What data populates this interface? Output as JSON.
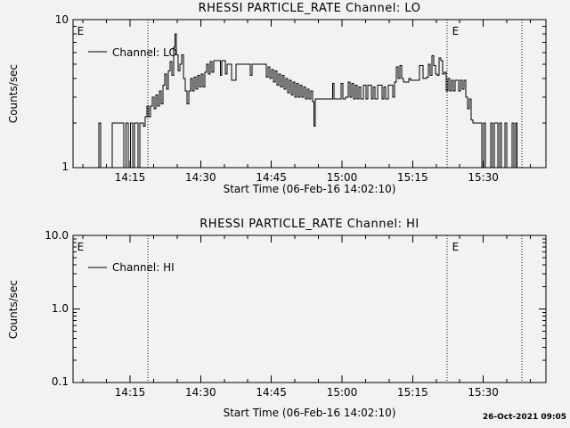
{
  "colors": {
    "background": "#f2f2f2",
    "foreground": "#000000"
  },
  "footer": {
    "timestamp": "26-Oct-2021 09:05"
  },
  "chart_data": [
    {
      "type": "line",
      "panel": "LO",
      "title": "RHESSI PARTICLE_RATE Channel: LO",
      "xlabel": "Start Time (06-Feb-16 14:02:10)",
      "ylabel": "Counts/sec",
      "yscale": "log",
      "ylim": [
        1,
        10
      ],
      "yticks": [
        {
          "v": 1,
          "label": "1"
        },
        {
          "v": 10,
          "label": "10"
        }
      ],
      "xlim_minutes_after_1400": [
        2.9,
        103.3
      ],
      "xticks_minutes": [
        {
          "t": 15,
          "label": "14:15"
        },
        {
          "t": 30,
          "label": "14:30"
        },
        {
          "t": 45,
          "label": "14:45"
        },
        {
          "t": 60,
          "label": "15:00"
        },
        {
          "t": 75,
          "label": "15:15"
        },
        {
          "t": 90,
          "label": "15:30"
        }
      ],
      "xminor_step_minutes": 5,
      "grid": false,
      "legend": {
        "label": "Channel: LO",
        "position": "upper-left"
      },
      "flag_lines_minutes": [
        18.8,
        82.3,
        98.2
      ],
      "event_markers": [
        {
          "t": 3.4,
          "label": "E"
        },
        {
          "t": 83.0,
          "label": "E"
        }
      ],
      "series": [
        {
          "name": "Channel: LO",
          "points_minutes_counts": [
            [
              2.9,
              1
            ],
            [
              8.2,
              1
            ],
            [
              8.6,
              2
            ],
            [
              9.0,
              1
            ],
            [
              13.5,
              2
            ],
            [
              13.9,
              1
            ],
            [
              14.4,
              2
            ],
            [
              14.8,
              1
            ],
            [
              15.4,
              2
            ],
            [
              15.8,
              1
            ],
            [
              16.1,
              2
            ],
            [
              16.5,
              2
            ],
            [
              16.9,
              1
            ],
            [
              17.3,
              2
            ],
            [
              17.6,
              2
            ],
            [
              18.0,
              1.9
            ],
            [
              18.4,
              2.2
            ],
            [
              18.8,
              2.6
            ],
            [
              19.2,
              2.2
            ],
            [
              19.5,
              2.6
            ],
            [
              19.9,
              3.0
            ],
            [
              20.3,
              2.5
            ],
            [
              20.7,
              3.1
            ],
            [
              21.0,
              2.6
            ],
            [
              21.4,
              3.3
            ],
            [
              21.8,
              2.7
            ],
            [
              22.2,
              3.6
            ],
            [
              22.6,
              4.3
            ],
            [
              22.9,
              3.4
            ],
            [
              23.3,
              4.5
            ],
            [
              23.7,
              5.2
            ],
            [
              24.1,
              4.2
            ],
            [
              24.5,
              6.5
            ],
            [
              24.6,
              8.0
            ],
            [
              25.0,
              5.8
            ],
            [
              25.4,
              4.5
            ],
            [
              25.8,
              5.0
            ],
            [
              26.2,
              5.8
            ],
            [
              26.5,
              4.0
            ],
            [
              26.9,
              3.3
            ],
            [
              27.3,
              2.7
            ],
            [
              27.7,
              3.3
            ],
            [
              28.0,
              4.0
            ],
            [
              28.4,
              3.3
            ],
            [
              28.8,
              4.1
            ],
            [
              29.2,
              3.4
            ],
            [
              29.6,
              4.2
            ],
            [
              29.9,
              3.5
            ],
            [
              30.3,
              4.3
            ],
            [
              30.7,
              3.5
            ],
            [
              31.1,
              4.4
            ],
            [
              31.4,
              5.0
            ],
            [
              31.8,
              4.3
            ],
            [
              32.2,
              5.2
            ],
            [
              32.6,
              4.4
            ],
            [
              33.0,
              5.3
            ],
            [
              34.1,
              5.3
            ],
            [
              34.3,
              4.2
            ],
            [
              34.7,
              5.3
            ],
            [
              35.0,
              5.3
            ],
            [
              35.4,
              4.3
            ],
            [
              35.8,
              5.0
            ],
            [
              37.3,
              3.9
            ],
            [
              37.7,
              5.0
            ],
            [
              40.3,
              5.0
            ],
            [
              40.7,
              4.2
            ],
            [
              41.1,
              5.0
            ],
            [
              43.7,
              5.0
            ],
            [
              44.1,
              4.1
            ],
            [
              44.5,
              4.8
            ],
            [
              44.9,
              4.0
            ],
            [
              45.2,
              4.6
            ],
            [
              45.6,
              3.8
            ],
            [
              46.0,
              4.5
            ],
            [
              46.4,
              3.6
            ],
            [
              46.8,
              4.3
            ],
            [
              47.1,
              3.5
            ],
            [
              47.5,
              4.2
            ],
            [
              47.9,
              3.4
            ],
            [
              48.3,
              4.0
            ],
            [
              48.7,
              3.2
            ],
            [
              49.0,
              3.9
            ],
            [
              49.4,
              3.1
            ],
            [
              49.8,
              3.8
            ],
            [
              50.2,
              3.0
            ],
            [
              50.5,
              3.7
            ],
            [
              50.9,
              3.0
            ],
            [
              51.3,
              3.6
            ],
            [
              51.7,
              3.0
            ],
            [
              52.1,
              3.5
            ],
            [
              52.4,
              2.9
            ],
            [
              52.8,
              3.4
            ],
            [
              53.2,
              2.9
            ],
            [
              53.6,
              3.3
            ],
            [
              53.9,
              2.8
            ],
            [
              54.1,
              1.9
            ],
            [
              54.5,
              2.9
            ],
            [
              57.9,
              2.9
            ],
            [
              58.1,
              3.7
            ],
            [
              58.5,
              2.9
            ],
            [
              59.6,
              2.9
            ],
            [
              60.0,
              3.7
            ],
            [
              60.4,
              2.9
            ],
            [
              61.1,
              3.0
            ],
            [
              61.5,
              3.8
            ],
            [
              61.9,
              3.0
            ],
            [
              62.3,
              3.7
            ],
            [
              62.6,
              2.9
            ],
            [
              63.0,
              3.6
            ],
            [
              63.4,
              2.9
            ],
            [
              63.8,
              3.5
            ],
            [
              64.2,
              2.9
            ],
            [
              64.9,
              3.6
            ],
            [
              65.3,
              2.9
            ],
            [
              65.7,
              3.6
            ],
            [
              66.0,
              3.6
            ],
            [
              66.4,
              2.9
            ],
            [
              66.8,
              3.5
            ],
            [
              67.2,
              2.9
            ],
            [
              67.9,
              3.6
            ],
            [
              68.3,
              3.6
            ],
            [
              68.7,
              2.9
            ],
            [
              69.1,
              3.5
            ],
            [
              69.4,
              2.9
            ],
            [
              70.2,
              3.6
            ],
            [
              70.6,
              3.6
            ],
            [
              71.0,
              3.0
            ],
            [
              71.3,
              3.8
            ],
            [
              71.7,
              4.8
            ],
            [
              72.1,
              4.0
            ],
            [
              72.5,
              4.9
            ],
            [
              72.9,
              4.0
            ],
            [
              73.2,
              3.8
            ],
            [
              74.0,
              3.8
            ],
            [
              74.4,
              4.0
            ],
            [
              74.7,
              3.9
            ],
            [
              75.1,
              3.9
            ],
            [
              76.3,
              3.9
            ],
            [
              76.6,
              4.9
            ],
            [
              77.0,
              4.9
            ],
            [
              77.4,
              4.0
            ],
            [
              77.8,
              4.0
            ],
            [
              78.1,
              4.1
            ],
            [
              78.5,
              5.0
            ],
            [
              78.9,
              4.2
            ],
            [
              79.3,
              5.7
            ],
            [
              79.7,
              4.9
            ],
            [
              80.0,
              4.3
            ],
            [
              80.4,
              4.2
            ],
            [
              80.8,
              5.5
            ],
            [
              81.2,
              5.3
            ],
            [
              81.6,
              4.3
            ],
            [
              81.9,
              4.4
            ],
            [
              82.3,
              3.3
            ],
            [
              82.7,
              4.0
            ],
            [
              83.1,
              3.3
            ],
            [
              83.5,
              3.9
            ],
            [
              83.8,
              3.3
            ],
            [
              84.2,
              3.9
            ],
            [
              84.6,
              3.9
            ],
            [
              85.0,
              3.3
            ],
            [
              85.3,
              3.9
            ],
            [
              85.7,
              3.4
            ],
            [
              86.1,
              3.9
            ],
            [
              86.5,
              3.0
            ],
            [
              86.9,
              2.5
            ],
            [
              87.2,
              2.9
            ],
            [
              87.6,
              2.1
            ],
            [
              88.0,
              2.0
            ],
            [
              89.5,
              2.0
            ],
            [
              89.9,
              1.0
            ],
            [
              90.3,
              2.0
            ],
            [
              90.6,
              1.0
            ],
            [
              91.4,
              1.0
            ],
            [
              91.8,
              2.0
            ],
            [
              92.1,
              1.0
            ],
            [
              92.5,
              2.0
            ],
            [
              92.9,
              2.0
            ],
            [
              93.3,
              1.0
            ],
            [
              93.6,
              2.0
            ],
            [
              94.0,
              1.0
            ],
            [
              94.4,
              1.0
            ],
            [
              94.8,
              2.0
            ],
            [
              95.2,
              1.0
            ],
            [
              95.9,
              1.0
            ],
            [
              96.3,
              2.0
            ],
            [
              96.7,
              1.0
            ],
            [
              97.0,
              2.0
            ],
            [
              97.4,
              1.0
            ],
            [
              97.6,
              1.0
            ]
          ]
        }
      ]
    },
    {
      "type": "line",
      "panel": "HI",
      "title": "RHESSI PARTICLE_RATE Channel: HI",
      "xlabel": "Start Time (06-Feb-16 14:02:10)",
      "ylabel": "Counts/sec",
      "yscale": "log",
      "ylim": [
        0.1,
        10.0
      ],
      "yticks": [
        {
          "v": 0.1,
          "label": "0.1"
        },
        {
          "v": 1,
          "label": "1.0"
        },
        {
          "v": 10,
          "label": "10.0"
        }
      ],
      "xlim_minutes_after_1400": [
        2.9,
        103.3
      ],
      "xticks_minutes": [
        {
          "t": 15,
          "label": "14:15"
        },
        {
          "t": 30,
          "label": "14:30"
        },
        {
          "t": 45,
          "label": "14:45"
        },
        {
          "t": 60,
          "label": "15:00"
        },
        {
          "t": 75,
          "label": "15:15"
        },
        {
          "t": 90,
          "label": "15:30"
        }
      ],
      "xminor_step_minutes": 5,
      "grid": false,
      "legend": {
        "label": "Channel: HI",
        "position": "upper-left"
      },
      "flag_lines_minutes": [
        18.8,
        82.3,
        98.2
      ],
      "event_markers": [
        {
          "t": 3.4,
          "label": "E"
        },
        {
          "t": 83.0,
          "label": "E"
        }
      ],
      "series": [
        {
          "name": "Channel: HI",
          "points_minutes_counts": []
        }
      ]
    }
  ]
}
